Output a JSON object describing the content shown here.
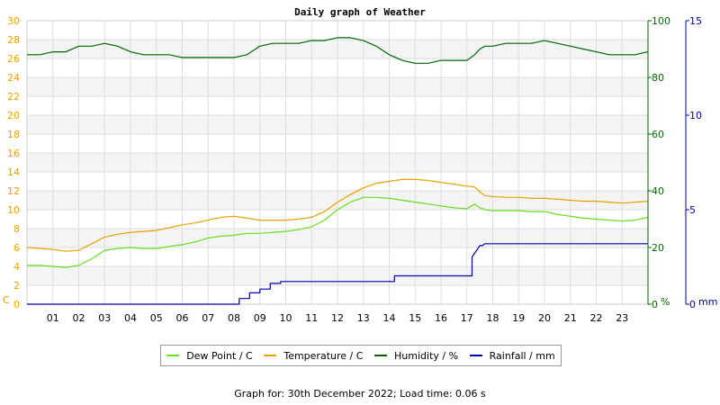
{
  "chart_data": {
    "type": "line",
    "title": "Daily graph of Weather",
    "x_tick_labels": [
      "01",
      "02",
      "03",
      "04",
      "05",
      "06",
      "07",
      "08",
      "09",
      "10",
      "11",
      "12",
      "13",
      "14",
      "15",
      "16",
      "17",
      "18",
      "19",
      "20",
      "21",
      "22",
      "23"
    ],
    "xlim": [
      0,
      24
    ],
    "axes": {
      "temperature": {
        "unit_label": "C",
        "ylim": [
          0,
          30
        ],
        "ticks": [
          0,
          2,
          4,
          6,
          8,
          10,
          12,
          14,
          16,
          18,
          20,
          22,
          24,
          26,
          28,
          30
        ],
        "color": "#e8a000"
      },
      "humidity": {
        "unit_label": "%",
        "ylim": [
          0,
          100
        ],
        "ticks": [
          0,
          20,
          40,
          60,
          80,
          100
        ],
        "color": "#006600"
      },
      "rainfall": {
        "unit_label": "mm",
        "ylim": [
          0,
          15
        ],
        "ticks": [
          0,
          5,
          10,
          15
        ],
        "color": "#0000aa"
      }
    },
    "grid": true,
    "legend_position": "bottom",
    "series": [
      {
        "name": "Dew Point / C",
        "axis": "temperature",
        "color": "#66dd22",
        "x": [
          0,
          0.5,
          1,
          1.5,
          2,
          2.5,
          3,
          3.5,
          4,
          4.5,
          5,
          5.5,
          6,
          6.5,
          7,
          7.5,
          8,
          8.5,
          9,
          9.5,
          10,
          10.5,
          11,
          11.5,
          12,
          12.5,
          13,
          13.5,
          14,
          14.5,
          15,
          15.5,
          16,
          16.5,
          17,
          17.3,
          17.5,
          17.7,
          18,
          18.5,
          19,
          19.5,
          20,
          20.5,
          21,
          21.5,
          22,
          22.5,
          23,
          23.5,
          24
        ],
        "values": [
          4.1,
          4.1,
          4.0,
          3.9,
          4.1,
          4.8,
          5.7,
          5.9,
          6.0,
          5.9,
          5.9,
          6.1,
          6.3,
          6.6,
          7.0,
          7.2,
          7.3,
          7.5,
          7.5,
          7.6,
          7.7,
          7.9,
          8.2,
          8.9,
          10.0,
          10.8,
          11.3,
          11.3,
          11.2,
          11.0,
          10.8,
          10.6,
          10.4,
          10.2,
          10.1,
          10.6,
          10.2,
          10.0,
          9.9,
          9.9,
          9.9,
          9.8,
          9.8,
          9.5,
          9.3,
          9.1,
          9.0,
          8.9,
          8.8,
          8.9,
          9.2
        ]
      },
      {
        "name": "Temperature / C",
        "axis": "temperature",
        "color": "#e8a000",
        "x": [
          0,
          0.5,
          1,
          1.5,
          2,
          2.5,
          3,
          3.5,
          4,
          4.5,
          5,
          5.5,
          6,
          6.5,
          7,
          7.5,
          8,
          8.5,
          9,
          9.5,
          10,
          10.5,
          11,
          11.5,
          12,
          12.5,
          13,
          13.5,
          14,
          14.5,
          15,
          15.5,
          16,
          16.5,
          17,
          17.3,
          17.5,
          17.7,
          18,
          18.5,
          19,
          19.5,
          20,
          20.5,
          21,
          21.5,
          22,
          22.5,
          23,
          23.5,
          24
        ],
        "values": [
          6.0,
          5.9,
          5.8,
          5.6,
          5.7,
          6.4,
          7.1,
          7.4,
          7.6,
          7.7,
          7.8,
          8.1,
          8.4,
          8.6,
          8.9,
          9.2,
          9.3,
          9.1,
          8.9,
          8.9,
          8.9,
          9.0,
          9.2,
          9.8,
          10.8,
          11.6,
          12.3,
          12.8,
          13.0,
          13.2,
          13.2,
          13.1,
          12.9,
          12.7,
          12.5,
          12.4,
          11.9,
          11.5,
          11.4,
          11.3,
          11.3,
          11.2,
          11.2,
          11.1,
          11.0,
          10.9,
          10.9,
          10.8,
          10.7,
          10.8,
          10.9
        ]
      },
      {
        "name": "Humidity / %",
        "axis": "humidity",
        "color": "#006600",
        "x": [
          0,
          0.5,
          1,
          1.5,
          2,
          2.5,
          3,
          3.5,
          4,
          4.5,
          5,
          5.5,
          6,
          6.5,
          7,
          7.5,
          8,
          8.5,
          9,
          9.5,
          10,
          10.5,
          11,
          11.5,
          12,
          12.5,
          13,
          13.5,
          14,
          14.5,
          15,
          15.5,
          16,
          16.5,
          17,
          17.3,
          17.5,
          17.7,
          18,
          18.5,
          19,
          19.5,
          20,
          20.5,
          21,
          21.5,
          22,
          22.5,
          23,
          23.5,
          24
        ],
        "values": [
          88,
          88,
          89,
          89,
          91,
          91,
          92,
          91,
          89,
          88,
          88,
          88,
          87,
          87,
          87,
          87,
          87,
          88,
          91,
          92,
          92,
          92,
          93,
          93,
          94,
          94,
          93,
          91,
          88,
          86,
          85,
          85,
          86,
          86,
          86,
          88,
          90,
          91,
          91,
          92,
          92,
          92,
          93,
          92,
          91,
          90,
          89,
          88,
          88,
          88,
          89
        ]
      },
      {
        "name": "Rainfall / mm",
        "axis": "rainfall",
        "color": "#0000aa",
        "x": [
          0,
          8.2,
          8.2,
          8.6,
          8.6,
          9.0,
          9.0,
          9.4,
          9.4,
          9.8,
          9.8,
          14.2,
          14.2,
          17.2,
          17.2,
          17.4,
          17.5,
          17.6,
          17.7,
          24
        ],
        "values": [
          0,
          0,
          0.3,
          0.3,
          0.6,
          0.6,
          0.8,
          0.8,
          1.1,
          1.1,
          1.2,
          1.2,
          1.5,
          1.5,
          2.5,
          2.9,
          3.1,
          3.1,
          3.2,
          3.2
        ]
      }
    ]
  },
  "footer": {
    "text": "Graph for: 30th December 2022; Load time: 0.06 s"
  }
}
